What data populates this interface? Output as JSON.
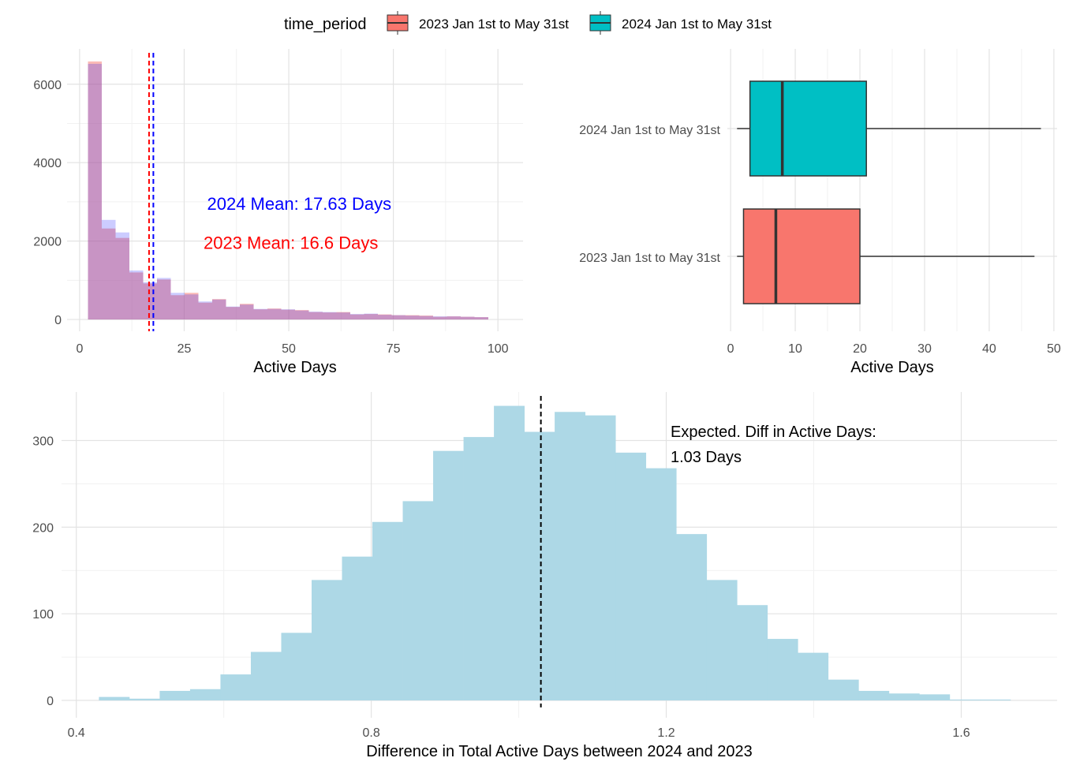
{
  "legend": {
    "title": "time_period",
    "items": [
      {
        "label": "2023 Jan 1st to May 31st",
        "color": "#F8766D"
      },
      {
        "label": "2024 Jan 1st to May 31st",
        "color": "#00BFC4"
      }
    ]
  },
  "chart_data": [
    {
      "type": "histogram",
      "xlabel": "Active Days",
      "ylabel": "",
      "xlim": [
        -3,
        106
      ],
      "ylim": [
        -300,
        6900
      ],
      "xticks": [
        0,
        25,
        50,
        75,
        100
      ],
      "yticks": [
        0,
        2000,
        4000,
        6000
      ],
      "grid": true,
      "bin_width": 3.3,
      "bin_starts": [
        2,
        5.3,
        8.6,
        11.9,
        15.2,
        18.5,
        21.8,
        25.1,
        28.4,
        31.7,
        35,
        38.3,
        41.6,
        44.9,
        48.2,
        51.5,
        54.8,
        58.1,
        61.4,
        64.7,
        68,
        71.3,
        74.6,
        77.9,
        81.2,
        84.5,
        87.8,
        91.1,
        94.4
      ],
      "series": [
        {
          "name": "2023 Jan 1st to May 31st",
          "color": "#F8766D",
          "values": [
            6580,
            2320,
            2080,
            1200,
            920,
            1020,
            620,
            680,
            430,
            520,
            320,
            400,
            260,
            280,
            250,
            240,
            190,
            180,
            190,
            130,
            140,
            130,
            110,
            110,
            100,
            70,
            80,
            70,
            60
          ]
        },
        {
          "name": "2024 Jan 1st to May 31st",
          "color": "#0000FF",
          "values": [
            6520,
            2540,
            2220,
            1250,
            950,
            1060,
            680,
            640,
            460,
            510,
            330,
            380,
            270,
            270,
            260,
            230,
            200,
            190,
            180,
            140,
            150,
            120,
            110,
            100,
            90,
            80,
            80,
            70,
            60
          ]
        }
      ],
      "vlines": [
        {
          "x": 16.6,
          "color": "#FF0000"
        },
        {
          "x": 17.63,
          "color": "#0000FF"
        }
      ],
      "annotations": [
        {
          "text": "2024 Mean: 17.63 Days",
          "color": "#0000FF",
          "x": 52.5,
          "y": 2960
        },
        {
          "text": "2023 Mean: 16.6 Days",
          "color": "#FF0000",
          "x": 50.5,
          "y": 1960
        }
      ]
    },
    {
      "type": "boxplot",
      "xlabel": "Active Days",
      "xlim": [
        -0.5,
        50.5
      ],
      "xticks": [
        0,
        10,
        20,
        30,
        40,
        50
      ],
      "grid": true,
      "boxes": [
        {
          "label": "2024 Jan 1st to May 31st",
          "color": "#00BFC4",
          "whisker_low": 1,
          "q1": 3,
          "median": 8,
          "q3": 21,
          "whisker_high": 48
        },
        {
          "label": "2023 Jan 1st to May 31st",
          "color": "#F8766D",
          "whisker_low": 1,
          "q1": 2,
          "median": 7,
          "q3": 20,
          "whisker_high": 47
        }
      ]
    },
    {
      "type": "histogram",
      "xlabel": "Difference in Total Active Days between 2024 and 2023",
      "ylabel": "",
      "xlim": [
        0.38,
        1.73
      ],
      "ylim": [
        -20,
        356
      ],
      "xticks": [
        0.4,
        0.8,
        1.2,
        1.6
      ],
      "xticklabels": [
        "0.4",
        "0.8",
        "1.2",
        "1.6"
      ],
      "yticks": [
        0,
        100,
        200,
        300
      ],
      "grid": true,
      "color": "#ADD8E6",
      "bin_width": 0.0412,
      "bin_starts": [
        0.4307,
        0.4719,
        0.5131,
        0.5543,
        0.5955,
        0.6367,
        0.6779,
        0.7191,
        0.7603,
        0.8015,
        0.8427,
        0.8839,
        0.9251,
        0.9663,
        1.0075,
        1.0487,
        1.0899,
        1.1311,
        1.1723,
        1.2135,
        1.2547,
        1.2959,
        1.3371,
        1.3783,
        1.4195,
        1.4607,
        1.5019,
        1.5431,
        1.5843,
        1.6255
      ],
      "values": [
        4,
        2,
        11,
        13,
        30,
        56,
        78,
        139,
        166,
        206,
        230,
        288,
        304,
        340,
        310,
        333,
        329,
        286,
        268,
        192,
        139,
        110,
        71,
        55,
        24,
        11,
        8,
        7,
        1,
        1
      ],
      "vline": {
        "x": 1.03,
        "color": "#000000"
      },
      "annotation": {
        "lines": [
          "Expected. Diff in Active Days:",
          "1.03 Days"
        ]
      }
    }
  ]
}
